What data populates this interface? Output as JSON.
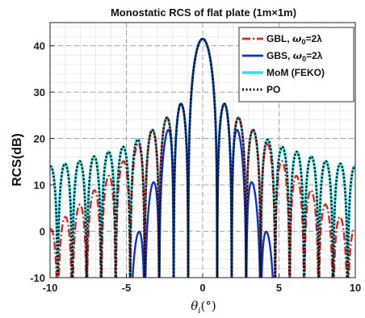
{
  "chart_data": {
    "type": "line",
    "title": "Monostatic RCS of flat plate (1m×1m)",
    "ylabel": "RCS(dB)",
    "xlabel": "θ",
    "xlabel_sub": "i",
    "xlabel_unit": "(°)",
    "xlim": [
      -10,
      10
    ],
    "ylim": [
      -10,
      45
    ],
    "xticks": [
      -10,
      -5,
      0,
      5,
      10
    ],
    "yticks": [
      -10,
      0,
      10,
      20,
      30,
      40
    ],
    "grid": "major and minor, dashed",
    "legend_position": "top-right",
    "series": [
      {
        "name_prefix": "GBL, ",
        "name_symbol": "ω",
        "name_sub": "0",
        "name_suffix": "=2λ",
        "color": "#e8231f",
        "dash": "dash-dot",
        "model": "gbl"
      },
      {
        "name_prefix": "GBS, ",
        "name_symbol": "ω",
        "name_sub": "0",
        "name_suffix": "=2λ",
        "color": "#1030c8",
        "dash": "solid",
        "model": "gbs"
      },
      {
        "name_prefix": "MoM (FEKO)",
        "color": "#33e0e8",
        "dash": "solid",
        "model": "mom"
      },
      {
        "name_prefix": "PO",
        "color": "#111111",
        "dash": "dotted",
        "model": "po"
      }
    ],
    "peak_db": 41.5,
    "lobe_peaks_db": [
      {
        "x": 1.5,
        "y": 27.5
      },
      {
        "x": 2.5,
        "y": 24
      },
      {
        "x": 3.45,
        "y": 21.5
      },
      {
        "x": 4.4,
        "y": 19.5
      },
      {
        "x": 5.35,
        "y": 18
      },
      {
        "x": 6.3,
        "y": 17
      },
      {
        "x": 7.25,
        "y": 16
      },
      {
        "x": 8.2,
        "y": 15
      },
      {
        "x": 9.15,
        "y": 14.5
      },
      {
        "x": 10,
        "y": 14
      }
    ]
  }
}
